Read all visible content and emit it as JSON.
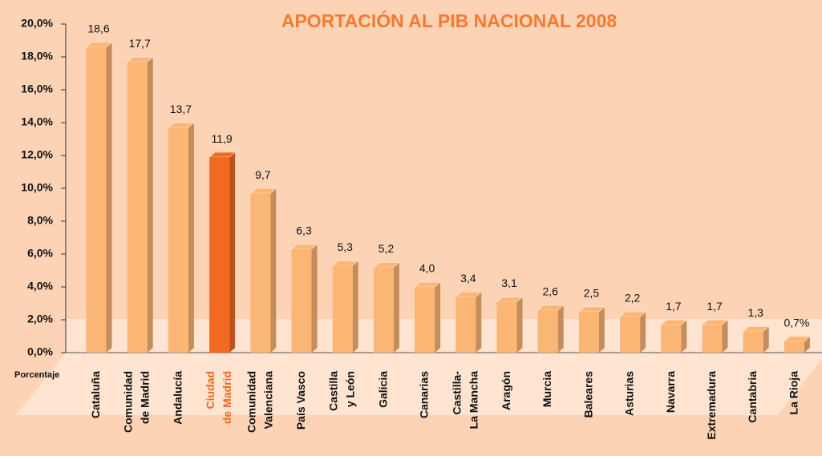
{
  "chart_data": {
    "type": "bar",
    "title": "APORTACIÓN AL PIB NACIONAL 2008",
    "axis_label": "Porcentaje",
    "categories": [
      "Cataluña",
      "Comunidad\nde Madrid",
      "Andalucía",
      "Ciudad\nde Madrid",
      "Comunidad\nValenciana",
      "País Vasco",
      "Castilla\ny León",
      "Galicia",
      "Canarias",
      "Castilla-\nLa Mancha",
      "Aragón",
      "Murcia",
      "Baleares",
      "Asturias",
      "Navarra",
      "Extremadura",
      "Cantabria",
      "La Rioja"
    ],
    "values": [
      18.6,
      17.7,
      13.7,
      11.9,
      9.7,
      6.3,
      5.3,
      5.2,
      4.0,
      3.4,
      3.1,
      2.6,
      2.5,
      2.2,
      1.7,
      1.7,
      1.3,
      0.7
    ],
    "value_labels": [
      "18,6",
      "17,7",
      "13,7",
      "11,9",
      "9,7",
      "6,3",
      "5,3",
      "5,2",
      "4,0",
      "3,4",
      "3,1",
      "2,6",
      "2,5",
      "2,2",
      "1,7",
      "1,7",
      "1,3",
      "0,7%"
    ],
    "color": "#fbb574",
    "colors": [
      "#fbb574",
      "#fbb574",
      "#fbb574",
      "#f26a21",
      "#fbb574",
      "#fbb574",
      "#fbb574",
      "#fbb574",
      "#fbb574",
      "#fbb574",
      "#fbb574",
      "#fbb574",
      "#fbb574",
      "#fbb574",
      "#fbb574",
      "#fbb574",
      "#fbb574",
      "#fbb574"
    ],
    "ylim": [
      0,
      20
    ],
    "yticks": [
      {
        "value": 0,
        "label": "0,0%"
      },
      {
        "value": 2,
        "label": "2,0%"
      },
      {
        "value": 4,
        "label": "4,0%"
      },
      {
        "value": 6,
        "label": "6,0%"
      },
      {
        "value": 8,
        "label": "8,0%"
      },
      {
        "value": 10,
        "label": "10,0%"
      },
      {
        "value": 12,
        "label": "12,0%"
      },
      {
        "value": 14,
        "label": "14,0%"
      },
      {
        "value": 16,
        "label": "16,0%"
      },
      {
        "value": 18,
        "label": "18,0%"
      },
      {
        "value": 20,
        "label": "20,0%"
      }
    ]
  }
}
